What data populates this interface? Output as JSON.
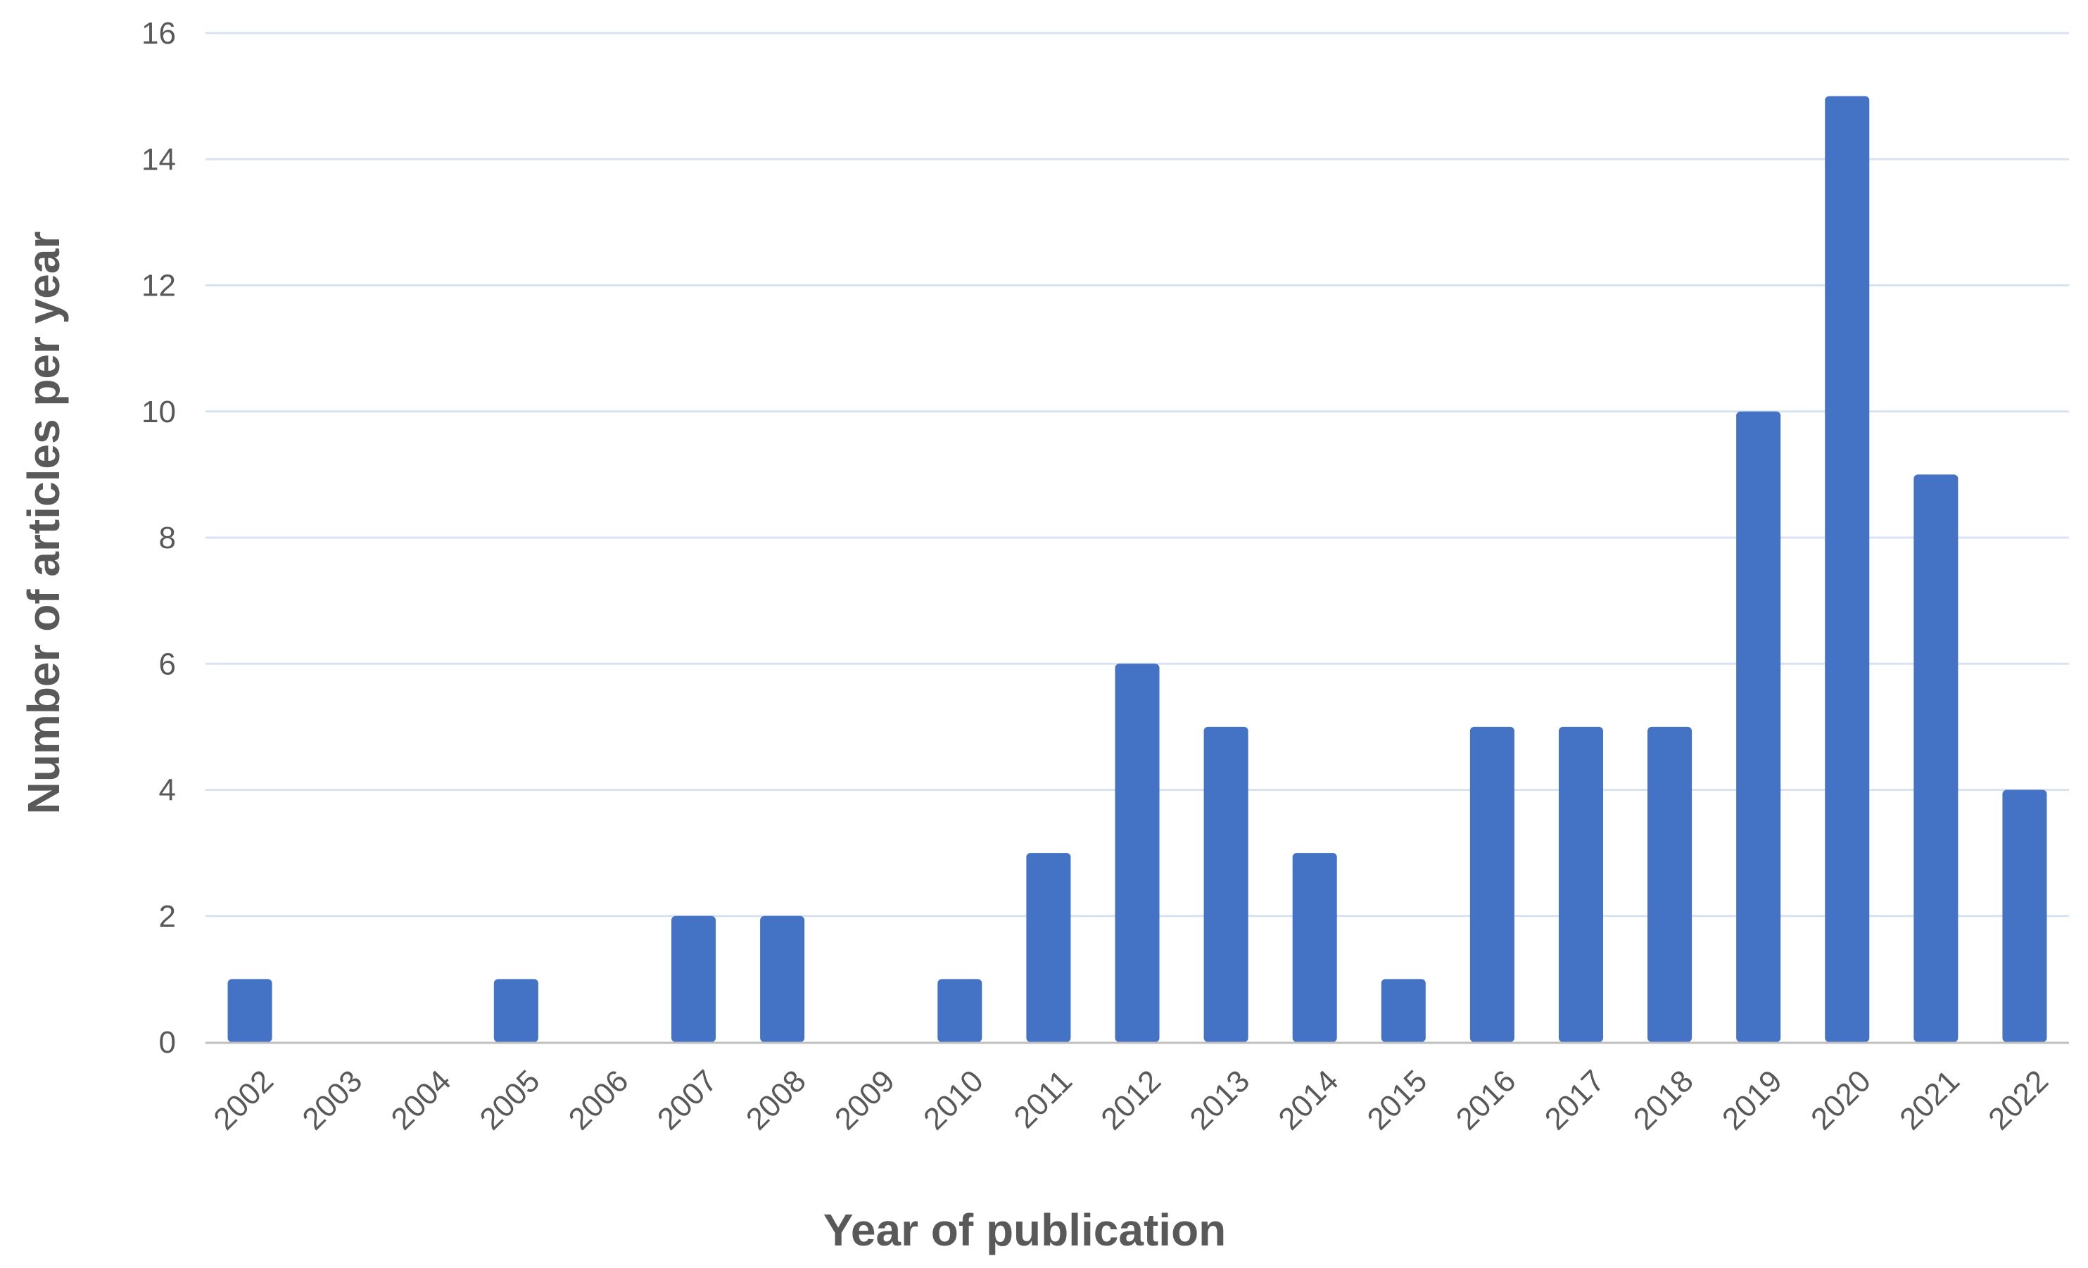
{
  "chart_data": {
    "type": "bar",
    "categories": [
      "2002",
      "2003",
      "2004",
      "2005",
      "2006",
      "2007",
      "2008",
      "2009",
      "2010",
      "2011",
      "2012",
      "2013",
      "2014",
      "2015",
      "2016",
      "2017",
      "2018",
      "2019",
      "2020",
      "2021",
      "2022"
    ],
    "values": [
      1,
      0,
      0,
      1,
      0,
      2,
      2,
      0,
      1,
      3,
      6,
      5,
      3,
      1,
      5,
      5,
      5,
      10,
      15,
      9,
      4
    ],
    "title": "",
    "xlabel": "Year of publication",
    "ylabel": "Number of articles per year",
    "ylim": [
      0,
      16
    ],
    "yticks": [
      0,
      2,
      4,
      6,
      8,
      10,
      12,
      14,
      16
    ],
    "grid": true,
    "legend": "none",
    "colors": {
      "bar": "#4472C4",
      "grid": "#D9E2F0",
      "axis": "#BFBFBF",
      "text": "#595959"
    }
  }
}
